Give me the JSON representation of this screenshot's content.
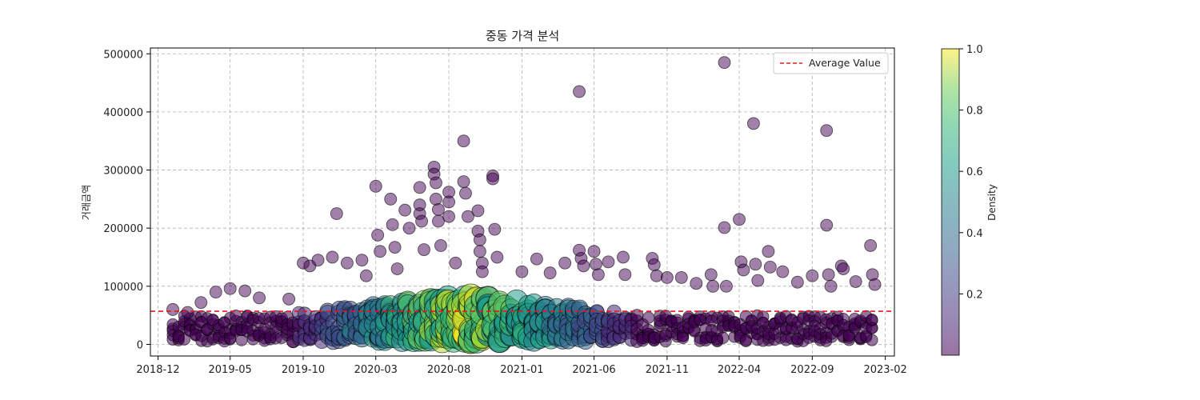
{
  "chart_data": {
    "type": "scatter",
    "title": "중동 가격 분석",
    "xlabel": "",
    "ylabel": "거래금액",
    "x_range": [
      "2018-11-15",
      "2023-02-20"
    ],
    "ylim": [
      -20000,
      510000
    ],
    "x_ticks": [
      "2018-12",
      "2019-05",
      "2019-10",
      "2020-03",
      "2020-08",
      "2021-01",
      "2021-06",
      "2021-11",
      "2022-04",
      "2022-09",
      "2023-02"
    ],
    "y_ticks": [
      0,
      100000,
      200000,
      300000,
      400000,
      500000
    ],
    "grid": true,
    "average_line": {
      "value": 57000,
      "color": "#e31a1c",
      "style": "dashed"
    },
    "legend": {
      "position": "top-right",
      "entries": [
        "Average Value"
      ]
    },
    "colorbar": {
      "label": "Density",
      "min": 0.0,
      "max": 1.0,
      "ticks": [
        "0.2",
        "0.4",
        "0.6",
        "0.8",
        "1.0"
      ],
      "colormap": "viridis"
    },
    "series": [
      {
        "points": [
          [
            "2019-01-01",
            60000
          ],
          [
            "2019-02-01",
            55000
          ],
          [
            "2019-03-01",
            72000
          ],
          [
            "2019-04-01",
            90000
          ],
          [
            "2019-05-01",
            96000
          ],
          [
            "2019-06-01",
            92000
          ],
          [
            "2019-07-01",
            80000
          ],
          [
            "2019-09-01",
            78000
          ],
          [
            "2019-10-01",
            140000
          ],
          [
            "2019-10-15",
            135000
          ],
          [
            "2019-11-01",
            145000
          ],
          [
            "2019-12-01",
            150000
          ],
          [
            "2019-12-10",
            225000
          ],
          [
            "2020-01-01",
            140000
          ],
          [
            "2020-02-01",
            145000
          ],
          [
            "2020-02-10",
            118000
          ],
          [
            "2020-03-01",
            272000
          ],
          [
            "2020-03-05",
            188000
          ],
          [
            "2020-03-10",
            160000
          ],
          [
            "2020-04-01",
            250000
          ],
          [
            "2020-04-05",
            206000
          ],
          [
            "2020-04-10",
            167000
          ],
          [
            "2020-04-15",
            130000
          ],
          [
            "2020-05-01",
            231000
          ],
          [
            "2020-05-10",
            200000
          ],
          [
            "2020-06-01",
            270000
          ],
          [
            "2020-06-01",
            240000
          ],
          [
            "2020-06-01",
            225000
          ],
          [
            "2020-06-05",
            212000
          ],
          [
            "2020-06-10",
            163000
          ],
          [
            "2020-07-01",
            305000
          ],
          [
            "2020-07-01",
            293000
          ],
          [
            "2020-07-05",
            278000
          ],
          [
            "2020-07-05",
            250000
          ],
          [
            "2020-07-10",
            232000
          ],
          [
            "2020-07-10",
            212000
          ],
          [
            "2020-07-15",
            170000
          ],
          [
            "2020-08-01",
            262000
          ],
          [
            "2020-08-01",
            245000
          ],
          [
            "2020-08-01",
            220000
          ],
          [
            "2020-08-15",
            140000
          ],
          [
            "2020-09-01",
            350000
          ],
          [
            "2020-09-01",
            280000
          ],
          [
            "2020-09-05",
            260000
          ],
          [
            "2020-09-10",
            220000
          ],
          [
            "2020-10-01",
            230000
          ],
          [
            "2020-10-01",
            195000
          ],
          [
            "2020-10-05",
            180000
          ],
          [
            "2020-10-05",
            160000
          ],
          [
            "2020-10-10",
            140000
          ],
          [
            "2020-10-10",
            125000
          ],
          [
            "2020-11-01",
            290000
          ],
          [
            "2020-11-01",
            285000
          ],
          [
            "2020-11-05",
            198000
          ],
          [
            "2020-11-10",
            150000
          ],
          [
            "2021-01-01",
            125000
          ],
          [
            "2021-02-01",
            147000
          ],
          [
            "2021-03-01",
            123000
          ],
          [
            "2021-04-01",
            140000
          ],
          [
            "2021-05-01",
            435000
          ],
          [
            "2021-05-01",
            162000
          ],
          [
            "2021-05-05",
            148000
          ],
          [
            "2021-05-10",
            135000
          ],
          [
            "2021-06-01",
            160000
          ],
          [
            "2021-06-05",
            138000
          ],
          [
            "2021-06-10",
            120000
          ],
          [
            "2021-07-01",
            142000
          ],
          [
            "2021-08-01",
            150000
          ],
          [
            "2021-08-05",
            120000
          ],
          [
            "2021-10-01",
            148000
          ],
          [
            "2021-10-05",
            137000
          ],
          [
            "2021-10-10",
            118000
          ],
          [
            "2021-11-01",
            115000
          ],
          [
            "2021-12-01",
            115000
          ],
          [
            "2022-01-01",
            105000
          ],
          [
            "2022-02-01",
            120000
          ],
          [
            "2022-02-05",
            100000
          ],
          [
            "2022-03-01",
            485000
          ],
          [
            "2022-03-01",
            201000
          ],
          [
            "2022-03-05",
            100000
          ],
          [
            "2022-04-01",
            215000
          ],
          [
            "2022-04-05",
            142000
          ],
          [
            "2022-04-10",
            128000
          ],
          [
            "2022-05-01",
            380000
          ],
          [
            "2022-05-05",
            138000
          ],
          [
            "2022-05-10",
            110000
          ],
          [
            "2022-06-01",
            160000
          ],
          [
            "2022-06-05",
            133000
          ],
          [
            "2022-07-01",
            125000
          ],
          [
            "2022-08-01",
            107000
          ],
          [
            "2022-09-01",
            118000
          ],
          [
            "2022-10-01",
            368000
          ],
          [
            "2022-10-01",
            205000
          ],
          [
            "2022-10-05",
            120000
          ],
          [
            "2022-10-10",
            100000
          ],
          [
            "2022-11-01",
            135000
          ],
          [
            "2022-11-05",
            130000
          ],
          [
            "2022-12-01",
            108000
          ],
          [
            "2023-01-01",
            170000
          ],
          [
            "2023-01-05",
            120000
          ],
          [
            "2023-01-10",
            103000
          ]
        ]
      }
    ]
  }
}
